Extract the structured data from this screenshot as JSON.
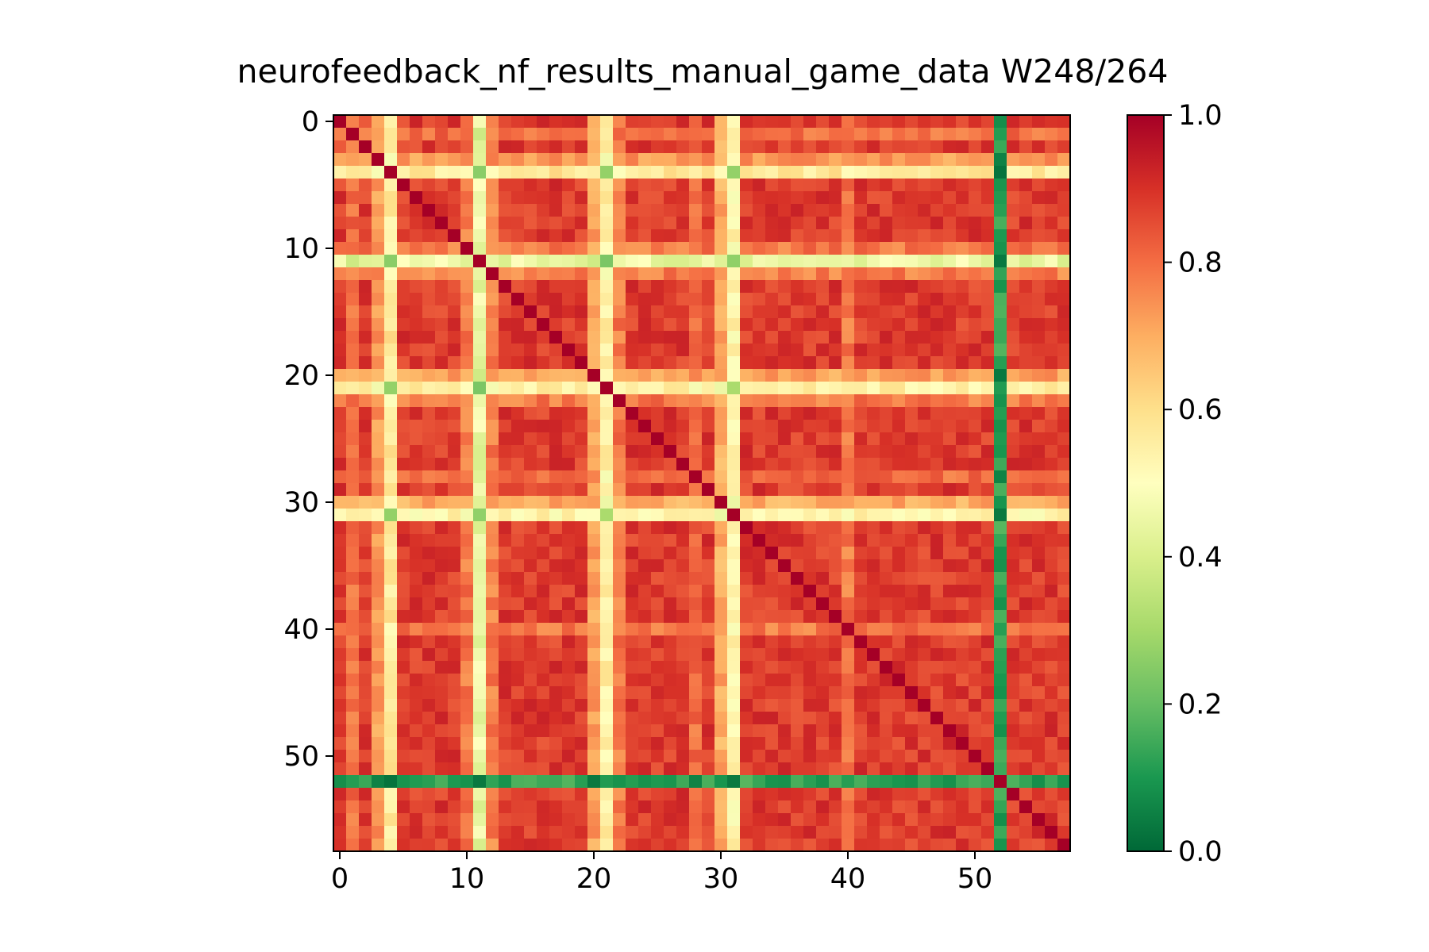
{
  "chart_data": {
    "type": "heatmap",
    "title": "neurofeedback_nf_results_manual_game_data W248/264",
    "xlabel": "",
    "ylabel": "",
    "grid": false,
    "legend": "none",
    "colormap": "RdYlGn_r",
    "colorbar": {
      "vmin": 0.0,
      "vmax": 1.0,
      "ticks": [
        0.0,
        0.2,
        0.4,
        0.6,
        0.8,
        1.0
      ],
      "tick_labels": [
        "0.0",
        "0.2",
        "0.4",
        "0.6",
        "0.8",
        "1.0"
      ]
    },
    "n": 58,
    "xlim": [
      -0.5,
      57.5
    ],
    "ylim": [
      57.5,
      -0.5
    ],
    "x_ticks": [
      0,
      10,
      20,
      30,
      40,
      50
    ],
    "x_tick_labels": [
      "0",
      "10",
      "20",
      "30",
      "40",
      "50"
    ],
    "y_ticks": [
      0,
      10,
      20,
      30,
      40,
      50
    ],
    "y_tick_labels": [
      "0",
      "10",
      "20",
      "30",
      "40",
      "50"
    ],
    "diagonal_value": 1.0,
    "typical_value": 0.88,
    "low_band_rows": [
      {
        "index": 4,
        "typical_value": 0.57
      },
      {
        "index": 11,
        "typical_value": 0.45
      },
      {
        "index": 21,
        "typical_value": 0.55
      },
      {
        "index": 31,
        "typical_value": 0.53
      },
      {
        "index": 52,
        "typical_value": 0.13
      }
    ],
    "intermediate_rows": [
      {
        "index": 1,
        "typical_value": 0.8
      },
      {
        "index": 3,
        "typical_value": 0.73
      },
      {
        "index": 10,
        "typical_value": 0.78
      },
      {
        "index": 12,
        "typical_value": 0.77
      },
      {
        "index": 20,
        "typical_value": 0.72
      },
      {
        "index": 22,
        "typical_value": 0.78
      },
      {
        "index": 28,
        "typical_value": 0.8
      },
      {
        "index": 30,
        "typical_value": 0.7
      },
      {
        "index": 40,
        "typical_value": 0.78
      }
    ]
  },
  "colors": {
    "cmap_stops": [
      "#006837",
      "#1a9850",
      "#66bd63",
      "#a6d96a",
      "#d9ef8b",
      "#ffffbf",
      "#fee08b",
      "#fdae61",
      "#f46d43",
      "#d73027",
      "#a50026"
    ],
    "axes": "#000000",
    "background": "#ffffff"
  }
}
